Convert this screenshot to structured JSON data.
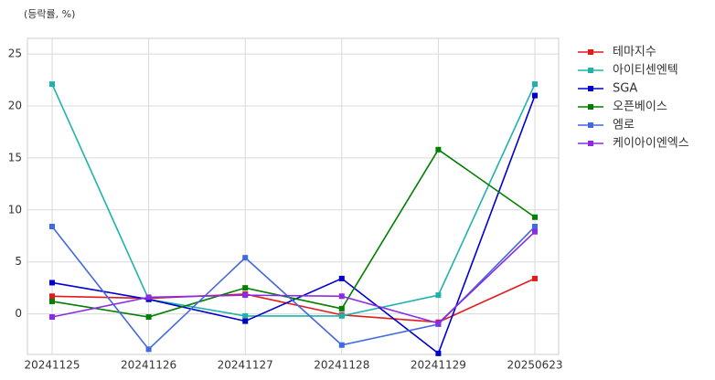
{
  "chart_data": {
    "type": "line",
    "annotation": "(등락률, %)",
    "categories": [
      "20241125",
      "20241126",
      "20241127",
      "20241128",
      "20241129",
      "20250623"
    ],
    "series": [
      {
        "name": "테마지수",
        "color": "#e31a1c",
        "values": [
          1.7,
          1.5,
          1.9,
          -0.1,
          -0.8,
          3.4
        ]
      },
      {
        "name": "아이티센엔텍",
        "color": "#20b2aa",
        "values": [
          22.1,
          1.4,
          -0.2,
          -0.2,
          1.8,
          22.1
        ]
      },
      {
        "name": "SGA",
        "color": "#0000cd",
        "values": [
          3.0,
          1.4,
          -0.7,
          3.4,
          -3.8,
          21.0
        ]
      },
      {
        "name": "오픈베이스",
        "color": "#008000",
        "values": [
          1.2,
          -0.3,
          2.5,
          0.5,
          15.8,
          9.3
        ]
      },
      {
        "name": "엠로",
        "color": "#4169e1",
        "values": [
          8.4,
          -3.4,
          5.4,
          -3.0,
          -1.0,
          8.4
        ]
      },
      {
        "name": "케이아이엔엑스",
        "color": "#8a2be2",
        "values": [
          -0.3,
          1.6,
          1.8,
          1.7,
          -0.9,
          7.9
        ]
      }
    ],
    "ylim": [
      -3.9,
      26.5
    ],
    "yticks": [
      0,
      5,
      10,
      15,
      20,
      25
    ],
    "grid": true,
    "legend": "outside-right"
  }
}
